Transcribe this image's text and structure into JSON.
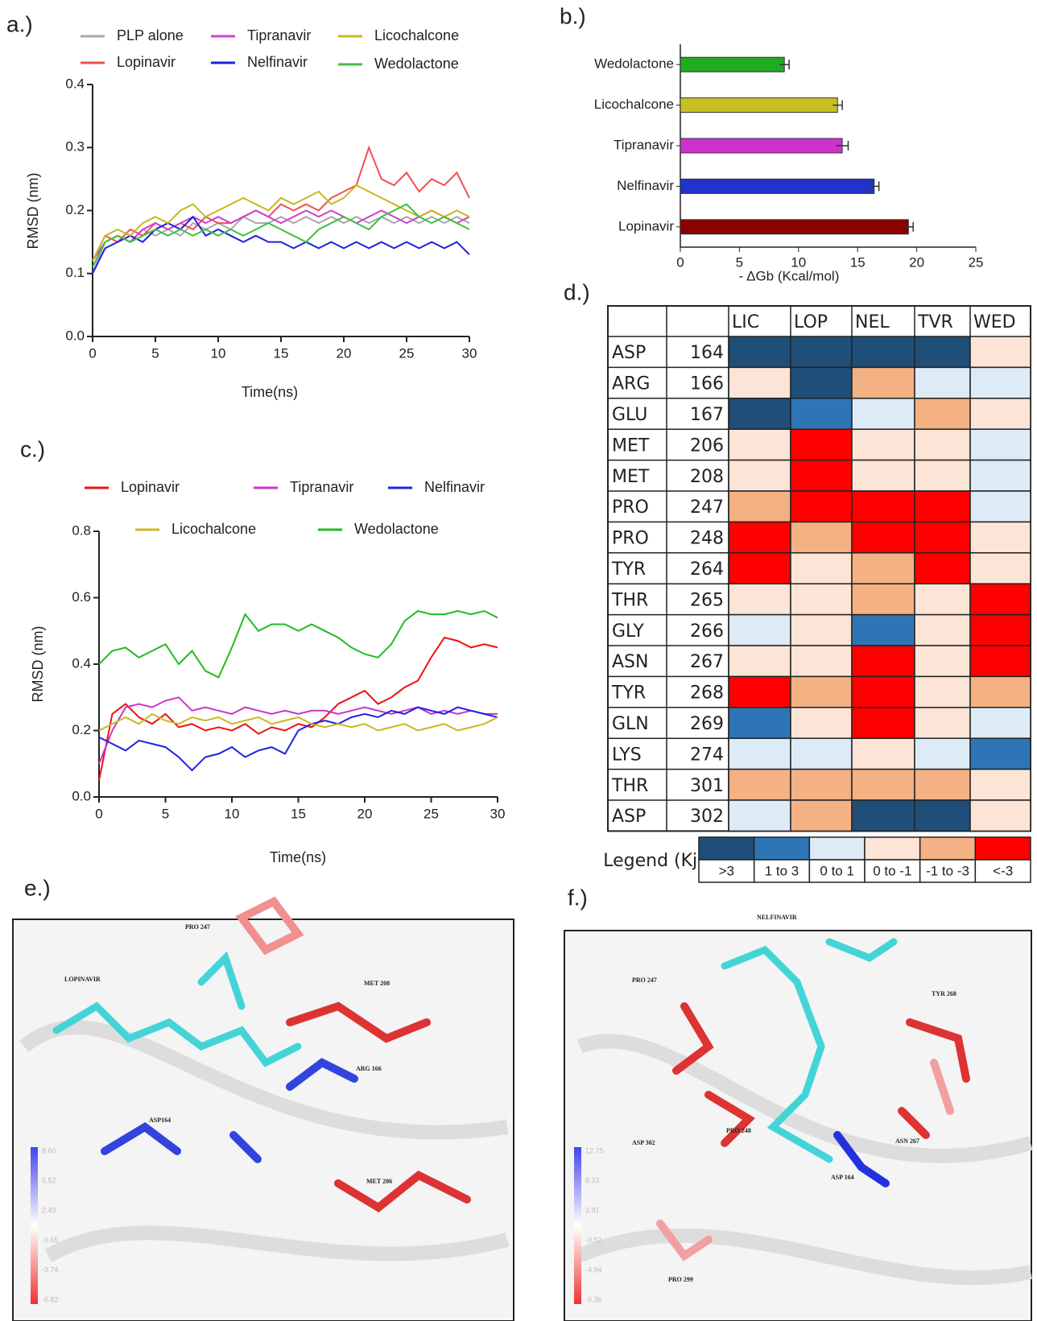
{
  "chart_data": [
    {
      "type": "line",
      "label": "a.)",
      "y_label": "RMSD (nm)",
      "x_label": "Time(ns)",
      "x": [
        0,
        1,
        2,
        3,
        4,
        5,
        6,
        7,
        8,
        9,
        10,
        11,
        12,
        13,
        14,
        15,
        16,
        17,
        18,
        19,
        20,
        21,
        22,
        23,
        24,
        25,
        26,
        27,
        28,
        29,
        30
      ],
      "xlim": [
        0,
        30
      ],
      "xticks": [
        0,
        5,
        10,
        15,
        20,
        25,
        30
      ],
      "ylim": [
        0,
        0.4
      ],
      "yticks": [
        {
          "value": 0,
          "label": "0.0"
        },
        0.1,
        0.2,
        0.3,
        0.4
      ],
      "series": [
        {
          "name": "PLP alone",
          "color": "#a8a8a8",
          "values": [
            0.1,
            0.15,
            0.16,
            0.15,
            0.17,
            0.16,
            0.17,
            0.16,
            0.18,
            0.17,
            0.18,
            0.17,
            0.19,
            0.18,
            0.18,
            0.19,
            0.18,
            0.19,
            0.18,
            0.19,
            0.18,
            0.19,
            0.18,
            0.19,
            0.18,
            0.19,
            0.18,
            0.19,
            0.18,
            0.19,
            0.18
          ]
        },
        {
          "name": "Lopinavir",
          "color": "#f05050",
          "values": [
            0.12,
            0.16,
            0.15,
            0.17,
            0.16,
            0.18,
            0.17,
            0.18,
            0.17,
            0.19,
            0.18,
            0.18,
            0.19,
            0.2,
            0.19,
            0.21,
            0.2,
            0.21,
            0.2,
            0.22,
            0.23,
            0.24,
            0.3,
            0.25,
            0.24,
            0.26,
            0.23,
            0.25,
            0.24,
            0.26,
            0.22
          ]
        },
        {
          "name": "Tipranavir",
          "color": "#d040d0",
          "values": [
            0.12,
            0.15,
            0.16,
            0.15,
            0.17,
            0.18,
            0.17,
            0.18,
            0.19,
            0.18,
            0.19,
            0.18,
            0.19,
            0.2,
            0.19,
            0.18,
            0.19,
            0.2,
            0.19,
            0.2,
            0.19,
            0.18,
            0.19,
            0.2,
            0.19,
            0.18,
            0.19,
            0.2,
            0.19,
            0.18,
            0.19
          ]
        },
        {
          "name": "Nelfinavir",
          "color": "#2020e0",
          "values": [
            0.1,
            0.14,
            0.15,
            0.16,
            0.15,
            0.17,
            0.18,
            0.17,
            0.19,
            0.16,
            0.17,
            0.16,
            0.15,
            0.16,
            0.15,
            0.15,
            0.14,
            0.15,
            0.14,
            0.15,
            0.14,
            0.15,
            0.14,
            0.15,
            0.14,
            0.15,
            0.14,
            0.15,
            0.14,
            0.15,
            0.13
          ]
        },
        {
          "name": "Licochalcone",
          "color": "#c8b820",
          "values": [
            0.12,
            0.16,
            0.17,
            0.16,
            0.18,
            0.19,
            0.18,
            0.2,
            0.21,
            0.19,
            0.2,
            0.21,
            0.22,
            0.21,
            0.2,
            0.22,
            0.21,
            0.22,
            0.23,
            0.21,
            0.22,
            0.24,
            0.23,
            0.22,
            0.21,
            0.2,
            0.19,
            0.2,
            0.19,
            0.2,
            0.19
          ]
        },
        {
          "name": "Wedolactone",
          "color": "#40c040",
          "values": [
            0.11,
            0.15,
            0.16,
            0.15,
            0.16,
            0.17,
            0.16,
            0.17,
            0.16,
            0.17,
            0.16,
            0.17,
            0.16,
            0.17,
            0.18,
            0.17,
            0.16,
            0.15,
            0.17,
            0.18,
            0.19,
            0.18,
            0.17,
            0.19,
            0.2,
            0.21,
            0.19,
            0.18,
            0.19,
            0.18,
            0.17
          ]
        }
      ]
    },
    {
      "type": "bar",
      "orientation": "horizontal",
      "label": "b.)",
      "x_label": "- ΔGb (Kcal/mol)",
      "categories": [
        "Wedolactone",
        "Licochalcone",
        "Tipranavir",
        "Nelfinavir",
        "Lopinavir"
      ],
      "values": [
        8.8,
        13.3,
        13.7,
        16.4,
        19.3
      ],
      "errors": [
        0.4,
        0.4,
        0.5,
        0.4,
        0.4
      ],
      "colors": [
        "#22aa22",
        "#c8c020",
        "#cc33cc",
        "#2233cc",
        "#8b0000"
      ],
      "xlim": [
        0,
        25
      ],
      "xticks": [
        0,
        5,
        10,
        15,
        20,
        25
      ]
    },
    {
      "type": "line",
      "label": "c.)",
      "y_label": "RMSD (nm)",
      "x_label": "Time(ns)",
      "x": [
        0,
        1,
        2,
        3,
        4,
        5,
        6,
        7,
        8,
        9,
        10,
        11,
        12,
        13,
        14,
        15,
        16,
        17,
        18,
        19,
        20,
        21,
        22,
        23,
        24,
        25,
        26,
        27,
        28,
        29,
        30
      ],
      "xlim": [
        0,
        30
      ],
      "xticks": [
        0,
        5,
        10,
        15,
        20,
        25,
        30
      ],
      "ylim": [
        0,
        0.8
      ],
      "yticks": [
        {
          "value": 0,
          "label": "0.0"
        },
        0.2,
        0.4,
        0.6,
        0.8
      ],
      "series": [
        {
          "name": "Lopinavir",
          "color": "#ee1111",
          "values": [
            0.05,
            0.25,
            0.28,
            0.24,
            0.22,
            0.25,
            0.21,
            0.22,
            0.2,
            0.21,
            0.2,
            0.22,
            0.19,
            0.21,
            0.2,
            0.22,
            0.21,
            0.24,
            0.28,
            0.3,
            0.32,
            0.28,
            0.3,
            0.33,
            0.35,
            0.42,
            0.48,
            0.47,
            0.45,
            0.46,
            0.45
          ]
        },
        {
          "name": "Tipranavir",
          "color": "#cc33cc",
          "values": [
            0.1,
            0.2,
            0.27,
            0.28,
            0.27,
            0.29,
            0.3,
            0.26,
            0.27,
            0.26,
            0.25,
            0.27,
            0.26,
            0.25,
            0.26,
            0.25,
            0.26,
            0.26,
            0.25,
            0.26,
            0.27,
            0.26,
            0.25,
            0.26,
            0.27,
            0.25,
            0.26,
            0.25,
            0.26,
            0.25,
            0.25
          ]
        },
        {
          "name": "Nelfinavir",
          "color": "#2222dd",
          "values": [
            0.18,
            0.16,
            0.14,
            0.17,
            0.16,
            0.15,
            0.12,
            0.08,
            0.12,
            0.13,
            0.15,
            0.12,
            0.14,
            0.15,
            0.13,
            0.2,
            0.22,
            0.23,
            0.22,
            0.24,
            0.25,
            0.24,
            0.26,
            0.25,
            0.27,
            0.26,
            0.25,
            0.27,
            0.26,
            0.25,
            0.24
          ]
        },
        {
          "name": "Licochalcone",
          "color": "#c8b820",
          "values": [
            0.2,
            0.22,
            0.24,
            0.22,
            0.25,
            0.23,
            0.22,
            0.24,
            0.23,
            0.24,
            0.22,
            0.23,
            0.24,
            0.22,
            0.23,
            0.24,
            0.22,
            0.21,
            0.22,
            0.21,
            0.22,
            0.2,
            0.21,
            0.22,
            0.2,
            0.21,
            0.22,
            0.2,
            0.21,
            0.22,
            0.24
          ]
        },
        {
          "name": "Wedolactone",
          "color": "#22bb22",
          "values": [
            0.4,
            0.44,
            0.45,
            0.42,
            0.44,
            0.46,
            0.4,
            0.44,
            0.38,
            0.36,
            0.45,
            0.55,
            0.5,
            0.52,
            0.52,
            0.5,
            0.52,
            0.5,
            0.48,
            0.45,
            0.43,
            0.42,
            0.46,
            0.53,
            0.56,
            0.55,
            0.55,
            0.56,
            0.55,
            0.56,
            0.54
          ]
        }
      ]
    },
    {
      "type": "heatmap",
      "label": "d.)",
      "columns": [
        "LIC",
        "LOP",
        "NEL",
        "TVR",
        "WED"
      ],
      "rows": [
        {
          "residue": "ASP",
          "number": 164
        },
        {
          "residue": "ARG",
          "number": 166
        },
        {
          "residue": "GLU",
          "number": 167
        },
        {
          "residue": "MET",
          "number": 206
        },
        {
          "residue": "MET",
          "number": 208
        },
        {
          "residue": "PRO",
          "number": 247
        },
        {
          "residue": "PRO",
          "number": 248
        },
        {
          "residue": "TYR",
          "number": 264
        },
        {
          "residue": "THR",
          "number": 265
        },
        {
          "residue": "GLY",
          "number": 266
        },
        {
          "residue": "ASN",
          "number": 267
        },
        {
          "residue": "TYR",
          "number": 268
        },
        {
          "residue": "GLN",
          "number": 269
        },
        {
          "residue": "LYS",
          "number": 274
        },
        {
          "residue": "THR",
          "number": 301
        },
        {
          "residue": "ASP",
          "number": 302
        }
      ],
      "cells": [
        [
          0,
          0,
          0,
          0,
          3
        ],
        [
          3,
          0,
          4,
          2,
          2
        ],
        [
          0,
          1,
          2,
          4,
          3
        ],
        [
          3,
          5,
          3,
          3,
          2
        ],
        [
          3,
          5,
          3,
          3,
          2
        ],
        [
          4,
          5,
          5,
          5,
          2
        ],
        [
          5,
          4,
          5,
          5,
          3
        ],
        [
          5,
          3,
          4,
          5,
          3
        ],
        [
          3,
          3,
          4,
          3,
          5
        ],
        [
          2,
          3,
          1,
          3,
          5
        ],
        [
          3,
          3,
          5,
          3,
          5
        ],
        [
          5,
          4,
          5,
          3,
          4
        ],
        [
          1,
          3,
          5,
          3,
          2
        ],
        [
          2,
          2,
          3,
          2,
          1
        ],
        [
          4,
          4,
          4,
          4,
          3
        ],
        [
          2,
          4,
          0,
          0,
          3
        ]
      ],
      "legend": {
        "title": "Legend (Kj)",
        "labels": [
          ">3",
          "1 to 3",
          "0 to 1",
          "0 to -1",
          "-1 to -3",
          "<-3"
        ],
        "colors": [
          "#1f4e79",
          "#2e75b6",
          "#ddebf7",
          "#fce4d6",
          "#f4b183",
          "#ff0000"
        ]
      }
    }
  ],
  "images": [
    {
      "label": "e.)",
      "annotations": [
        "LOPINAVIR",
        "PRO 247",
        "MET 208",
        "ARG 166",
        "ASP164",
        "MET 206"
      ],
      "scale": [
        "8.60",
        "5.52",
        "2.43",
        "-0.65",
        "-3.74",
        "-6.82"
      ]
    },
    {
      "label": "f.)",
      "annotations": [
        "NELFINAVIR",
        "TYR 268",
        "PRO 247",
        "PRO 248",
        "ASN 267",
        "ASP 302",
        "ASP 164",
        "PRO 299"
      ],
      "scale": [
        "12.75",
        "8.33",
        "3.91",
        "-0.52",
        "-4.94",
        "-9.36"
      ]
    }
  ]
}
